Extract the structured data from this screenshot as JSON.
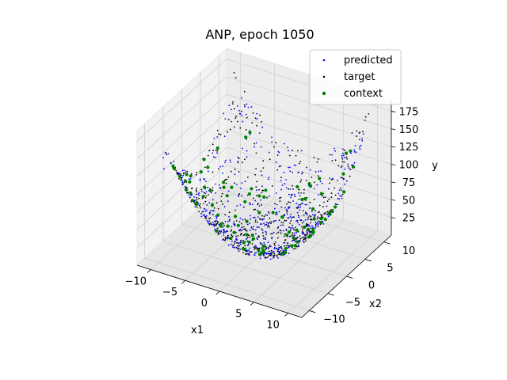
{
  "chart_data": {
    "type": "scatter",
    "projection": "3d",
    "title": "ANP, epoch 1050",
    "xlabel": "x1",
    "ylabel": "x2",
    "zlabel": "y",
    "xlim": [
      -12,
      12
    ],
    "ylim": [
      -12,
      12
    ],
    "zlim": [
      0,
      190
    ],
    "x_ticks": [
      "−10",
      "−5",
      "0",
      "5",
      "10"
    ],
    "y_ticks": [
      "−10",
      "−5",
      "0",
      "5",
      "10"
    ],
    "z_ticks": [
      "25",
      "50",
      "75",
      "100",
      "125",
      "150",
      "175"
    ],
    "grid": true,
    "legend_position": "top-right",
    "surface": "y ≈ x1² + x2² (paraboloid bowl, min ≈ 0 at origin, max ≈ 190 at x1=−10, x2=10 corner)",
    "series": [
      {
        "name": "predicted",
        "color": "#0000ff",
        "marker": "small-dot",
        "description_values": {
          "x1_range": [
            -10,
            10
          ],
          "x2_range": [
            -10,
            10
          ],
          "y_range": [
            5,
            160
          ]
        }
      },
      {
        "name": "target",
        "color": "#000000",
        "marker": "small-dot",
        "description_values": {
          "x1_range": [
            -10,
            10
          ],
          "x2_range": [
            -10,
            10
          ],
          "y_range": [
            0,
            190
          ]
        }
      },
      {
        "name": "context",
        "color": "#008000",
        "marker": "dot",
        "description_values": {
          "x1_range": [
            -10,
            10
          ],
          "x2_range": [
            -10,
            10
          ],
          "y_range": [
            0,
            150
          ]
        }
      }
    ]
  }
}
